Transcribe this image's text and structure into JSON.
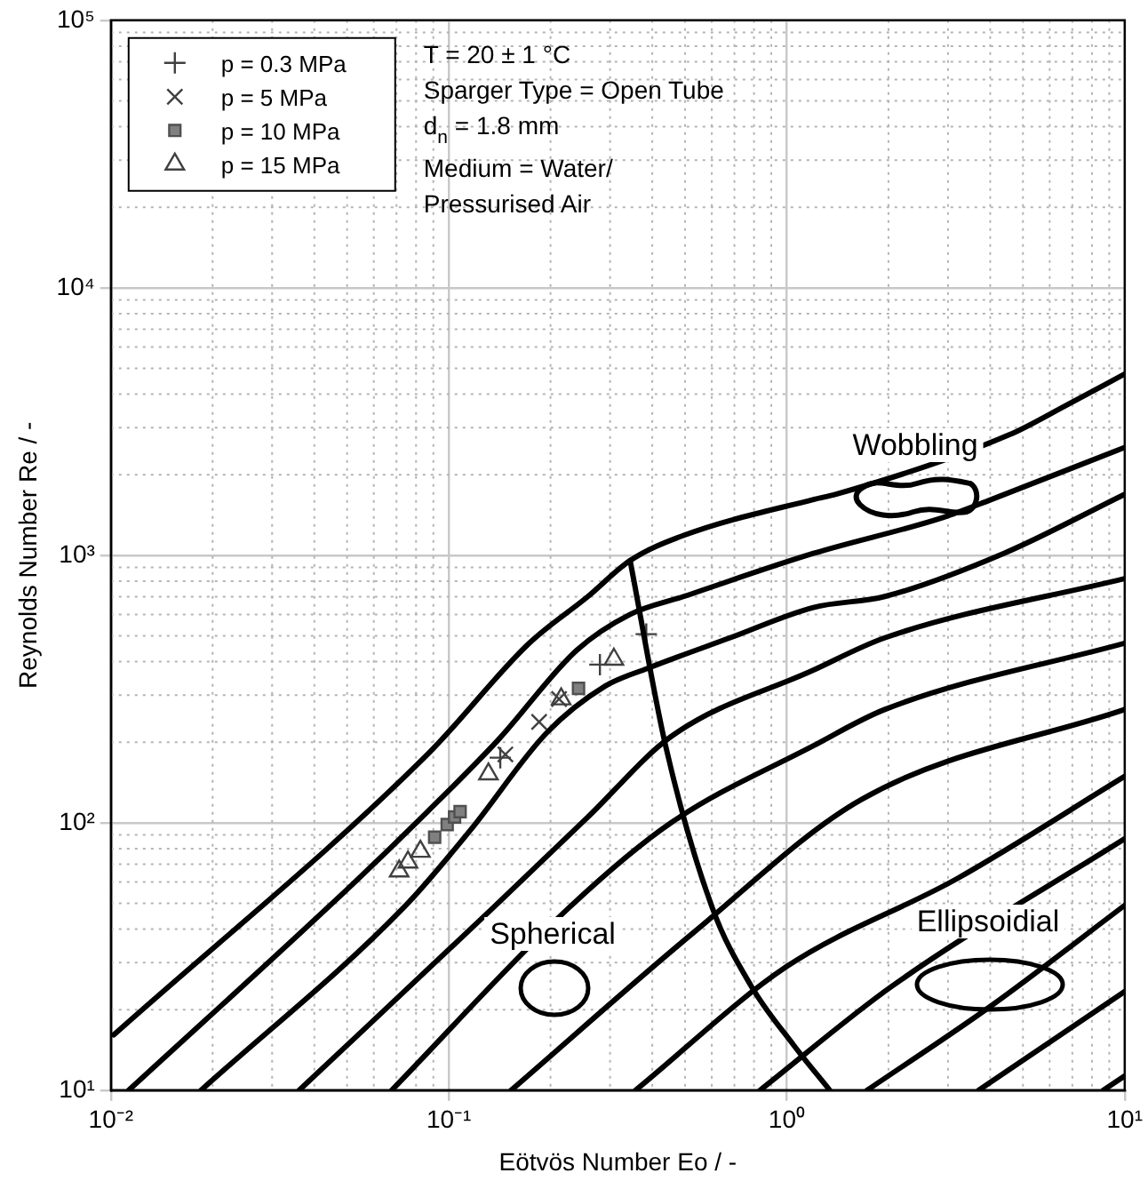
{
  "chart_data": {
    "type": "scatter",
    "xlabel": "Eötvös Number Eo / -",
    "ylabel": "Reynolds Number Re / -",
    "xlim": [
      0.01,
      10
    ],
    "ylim": [
      10,
      100000
    ],
    "xticks": [
      {
        "value": 0.01,
        "label": "10⁻²"
      },
      {
        "value": 0.1,
        "label": "10⁻¹"
      },
      {
        "value": 1,
        "label": "10⁰"
      },
      {
        "value": 10,
        "label": "10¹"
      }
    ],
    "yticks": [
      {
        "value": 10,
        "label": "10¹"
      },
      {
        "value": 100,
        "label": "10²"
      },
      {
        "value": 1000,
        "label": "10³"
      },
      {
        "value": 10000,
        "label": "10⁴"
      },
      {
        "value": 100000,
        "label": "10⁵"
      }
    ],
    "log": "xy",
    "grid": true,
    "legend": "top left",
    "annotations": [
      "T = 20 ± 1 °C",
      "Sparger Type = Open Tube",
      "d$_{n}$ = 1.8 mm",
      "Medium = Water/",
      "Pressurised Air",
      "Wobbling",
      "Spherical",
      "Ellipsoidial"
    ],
    "series": [
      {
        "type": "line",
        "color": "#000000",
        "marker": "none",
        "x": [
          0.0102,
          0.0865,
          0.173,
          0.258,
          0.344,
          0.495,
          1.2,
          1.4,
          4.55,
          6.79,
          10
        ],
        "values": [
          16.1,
          180,
          469,
          701,
          955,
          1186,
          1615,
          1690,
          2818,
          3664,
          4760
        ]
      },
      {
        "type": "line",
        "color": "#000000",
        "marker": "none",
        "x": [
          0.0113,
          0.0514,
          0.0865,
          0.14,
          0.239,
          0.344,
          0.495,
          1.2,
          2.9,
          4.03,
          10
        ],
        "values": [
          10,
          58.2,
          110,
          204,
          441,
          601,
          701,
          1016,
          1384,
          1615,
          2530
        ]
      },
      {
        "type": "line",
        "color": "#000000",
        "marker": "none",
        "x": [
          0.0185,
          0.0738,
          0.116,
          0.195,
          0.29,
          0.388,
          0.679,
          1.2,
          1.95,
          4.39,
          10
        ],
        "values": [
          10,
          48.4,
          94,
          217,
          324,
          378,
          491,
          638,
          701,
          1016,
          1690
        ]
      },
      {
        "type": "line",
        "color": "#000000",
        "marker": "none",
        "x": [
          0.0361,
          0.136,
          0.258,
          0.455,
          1.2,
          1.95,
          10
        ],
        "values": [
          10,
          48.4,
          105,
          210,
          372,
          491,
          818
        ]
      },
      {
        "type": "line",
        "color": "#000000",
        "marker": "none",
        "x": [
          0.0678,
          0.228,
          0.455,
          1.2,
          1.95,
          10
        ],
        "values": [
          10,
          48.4,
          100,
          194,
          265,
          469
        ]
      },
      {
        "type": "line",
        "color": "#000000",
        "marker": "none",
        "x": [
          0.153,
          0.532,
          1.66,
          10
        ],
        "values": [
          10,
          39,
          122,
          265
        ]
      },
      {
        "type": "line",
        "color": "#000000",
        "marker": "none",
        "x": [
          0.357,
          1,
          3.2,
          10
        ],
        "values": [
          10,
          29,
          61.9,
          149
        ]
      },
      {
        "type": "line",
        "color": "#000000",
        "marker": "none",
        "x": [
          0.834,
          2.05,
          10
        ],
        "values": [
          10,
          24.5,
          87.1
        ]
      },
      {
        "type": "line",
        "color": "#000000",
        "marker": "none",
        "x": [
          1.73,
          4.03,
          10
        ],
        "values": [
          10,
          20.7,
          49.1
        ]
      },
      {
        "type": "line",
        "color": "#000000",
        "marker": "none",
        "x": [
          3.7,
          10
        ],
        "values": [
          10,
          23.4
        ]
      },
      {
        "type": "line",
        "color": "#000000",
        "marker": "none",
        "x": [
          8.65,
          10
        ],
        "values": [
          10,
          11.3
        ]
      },
      {
        "type": "line",
        "color": "#000000",
        "marker": "none",
        "x": [
          0.344,
          0.438,
          0.601,
          0.785,
          1.05,
          1.34
        ],
        "values": [
          955,
          194,
          48.4,
          24.5,
          14.7,
          10
        ]
      },
      {
        "name": "p = 0.3 MPa",
        "color": "#404040",
        "marker": "cross",
        "x": [
          0.142,
          0.28,
          0.384
        ],
        "values": [
          175,
          390,
          507
        ]
      },
      {
        "name": "p = 5 MPa",
        "color": "#404040",
        "marker": "x",
        "x": [
          0.147,
          0.185,
          0.212
        ],
        "values": [
          180,
          238,
          290
        ]
      },
      {
        "name": "p = 10 MPa",
        "color": "#808080",
        "marker": "square",
        "x": [
          0.0908,
          0.0989,
          0.104,
          0.108,
          0.242
        ],
        "values": [
          88.3,
          98.4,
          105,
          110,
          318
        ]
      },
      {
        "name": "p = 15 MPa",
        "color": "#404040",
        "marker": "triangle",
        "x": [
          0.0713,
          0.0757,
          0.0824,
          0.131,
          0.215,
          0.308
        ],
        "values": [
          65.9,
          71.2,
          78.1,
          152,
          290,
          408
        ]
      }
    ]
  }
}
